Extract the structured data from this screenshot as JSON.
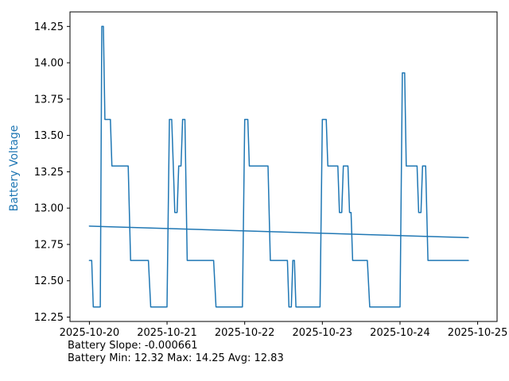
{
  "chart_data": {
    "type": "line",
    "title": "",
    "xlabel": "",
    "ylabel": "Battery Voltage",
    "ylabel_color": "#1f77b4",
    "line_color": "#1f77b4",
    "axis_color": "#000000",
    "grid": false,
    "x_ticks": [
      "2025-10-20",
      "2025-10-21",
      "2025-10-22",
      "2025-10-23",
      "2025-10-24",
      "2025-10-25"
    ],
    "y_ticks": [
      12.25,
      12.5,
      12.75,
      13.0,
      13.25,
      13.5,
      13.75,
      14.0,
      14.25
    ],
    "xlim": [
      -0.25,
      5.25
    ],
    "ylim": [
      12.22,
      14.35
    ],
    "series": [
      {
        "name": "battery_voltage",
        "color": "#1f77b4",
        "points": [
          [
            0.0,
            12.64
          ],
          [
            0.03,
            12.64
          ],
          [
            0.05,
            12.32
          ],
          [
            0.14,
            12.32
          ],
          [
            0.16,
            14.25
          ],
          [
            0.18,
            14.25
          ],
          [
            0.2,
            13.61
          ],
          [
            0.27,
            13.61
          ],
          [
            0.29,
            13.29
          ],
          [
            0.5,
            13.29
          ],
          [
            0.53,
            12.64
          ],
          [
            0.76,
            12.64
          ],
          [
            0.79,
            12.32
          ],
          [
            1.0,
            12.32
          ],
          [
            1.03,
            13.61
          ],
          [
            1.06,
            13.61
          ],
          [
            1.08,
            13.29
          ],
          [
            1.1,
            12.97
          ],
          [
            1.13,
            12.97
          ],
          [
            1.15,
            13.29
          ],
          [
            1.18,
            13.29
          ],
          [
            1.2,
            13.61
          ],
          [
            1.23,
            13.61
          ],
          [
            1.26,
            12.64
          ],
          [
            1.6,
            12.64
          ],
          [
            1.63,
            12.32
          ],
          [
            1.97,
            12.32
          ],
          [
            2.0,
            13.61
          ],
          [
            2.04,
            13.61
          ],
          [
            2.06,
            13.29
          ],
          [
            2.3,
            13.29
          ],
          [
            2.33,
            12.64
          ],
          [
            2.55,
            12.64
          ],
          [
            2.57,
            12.32
          ],
          [
            2.6,
            12.32
          ],
          [
            2.62,
            12.64
          ],
          [
            2.64,
            12.64
          ],
          [
            2.66,
            12.32
          ],
          [
            2.97,
            12.32
          ],
          [
            3.0,
            13.61
          ],
          [
            3.05,
            13.61
          ],
          [
            3.07,
            13.29
          ],
          [
            3.2,
            13.29
          ],
          [
            3.22,
            12.97
          ],
          [
            3.25,
            12.97
          ],
          [
            3.27,
            13.29
          ],
          [
            3.33,
            13.29
          ],
          [
            3.35,
            12.97
          ],
          [
            3.37,
            12.97
          ],
          [
            3.39,
            12.64
          ],
          [
            3.58,
            12.64
          ],
          [
            3.61,
            12.32
          ],
          [
            3.97,
            12.32
          ],
          [
            4.0,
            12.32
          ],
          [
            4.03,
            13.93
          ],
          [
            4.06,
            13.93
          ],
          [
            4.08,
            13.29
          ],
          [
            4.22,
            13.29
          ],
          [
            4.24,
            12.97
          ],
          [
            4.27,
            12.97
          ],
          [
            4.29,
            13.29
          ],
          [
            4.33,
            13.29
          ],
          [
            4.36,
            12.64
          ],
          [
            4.88,
            12.64
          ]
        ]
      },
      {
        "name": "trend",
        "color": "#1f77b4",
        "points": [
          [
            0.0,
            12.876
          ],
          [
            4.88,
            12.797
          ]
        ]
      }
    ],
    "annotations": [
      "Battery Slope: -0.000661",
      "Battery Min: 12.32 Max: 14.25 Avg: 12.83"
    ],
    "stats": {
      "slope": -0.000661,
      "min": 12.32,
      "max": 14.25,
      "avg": 12.83
    }
  }
}
